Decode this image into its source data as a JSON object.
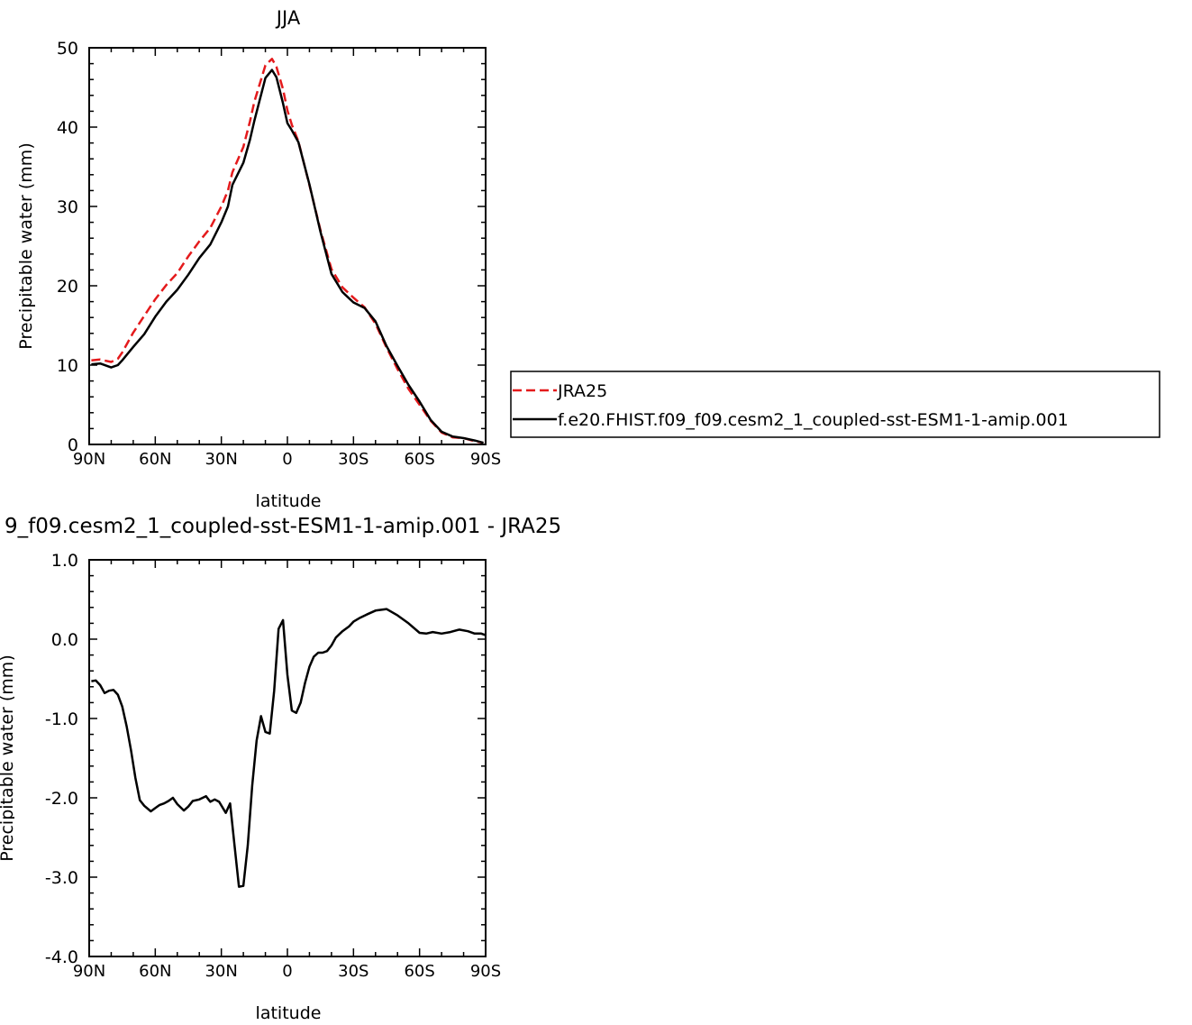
{
  "chart_data": [
    {
      "type": "line",
      "title": "JJA",
      "xlabel": "latitude",
      "ylabel": "Precipitable water (mm)",
      "xlim": [
        90,
        -90
      ],
      "ylim": [
        0,
        50
      ],
      "xticks": [
        90,
        60,
        30,
        0,
        -30,
        -60,
        -90
      ],
      "xtick_labels": [
        "90N",
        "60N",
        "30N",
        "0",
        "30S",
        "60S",
        "90S"
      ],
      "yticks": [
        0,
        10,
        20,
        30,
        40,
        50
      ],
      "ytick_labels": [
        "0",
        "10",
        "20",
        "30",
        "40",
        "50"
      ],
      "legend_position": "right",
      "series": [
        {
          "name": "JRA25",
          "color": "#e41a1c",
          "dash": "dashed",
          "x": [
            89,
            85,
            80,
            77,
            75,
            70,
            65,
            60,
            55,
            50,
            45,
            40,
            35,
            30,
            27,
            25,
            20,
            17,
            15,
            10,
            7,
            5,
            2,
            0,
            -2,
            -5,
            -10,
            -15,
            -20,
            -25,
            -30,
            -35,
            -40,
            -45,
            -50,
            -55,
            -60,
            -65,
            -70,
            -75,
            -80,
            -85,
            -89
          ],
          "y": [
            10.6,
            10.7,
            10.4,
            10.8,
            11.6,
            14.1,
            16.2,
            18.3,
            20.1,
            21.6,
            23.7,
            25.6,
            27.3,
            30.0,
            32.0,
            34.3,
            37.5,
            40.7,
            43.2,
            47.8,
            48.6,
            47.6,
            44.8,
            42.1,
            40.3,
            38.2,
            32.7,
            27.0,
            22.1,
            19.8,
            18.5,
            17.3,
            15.2,
            12.2,
            9.5,
            7.0,
            5.0,
            3.0,
            1.5,
            0.9,
            0.8,
            0.4,
            0.2
          ]
        },
        {
          "name": "f.e20.FHIST.f09_f09.cesm2_1_coupled-sst-ESM1-1-amip.001",
          "color": "#000000",
          "dash": "solid",
          "x": [
            89,
            85,
            80,
            77,
            75,
            70,
            65,
            60,
            55,
            50,
            45,
            40,
            35,
            30,
            27,
            25,
            20,
            17,
            15,
            10,
            7,
            5,
            2,
            0,
            -2,
            -5,
            -10,
            -15,
            -20,
            -25,
            -30,
            -35,
            -40,
            -45,
            -50,
            -55,
            -60,
            -65,
            -70,
            -75,
            -80,
            -85,
            -89
          ],
          "y": [
            10.1,
            10.2,
            9.7,
            10.0,
            10.6,
            12.3,
            13.9,
            16.1,
            18.0,
            19.5,
            21.4,
            23.5,
            25.2,
            28.0,
            30.0,
            32.7,
            35.5,
            38.4,
            40.8,
            46.2,
            47.2,
            46.3,
            43.0,
            40.5,
            39.6,
            38.1,
            32.8,
            26.8,
            21.5,
            19.2,
            17.9,
            17.2,
            15.5,
            12.4,
            9.9,
            7.5,
            5.4,
            3.1,
            1.6,
            1.0,
            0.8,
            0.5,
            0.2
          ]
        }
      ]
    },
    {
      "type": "line",
      "title": "9_f09.cesm2_1_coupled-sst-ESM1-1-amip.001 - JRA25",
      "xlabel": "latitude",
      "ylabel": "Precipitable water (mm)",
      "xlim": [
        90,
        -90
      ],
      "ylim": [
        -4,
        1
      ],
      "xticks": [
        90,
        60,
        30,
        0,
        -30,
        -60,
        -90
      ],
      "xtick_labels": [
        "90N",
        "60N",
        "30N",
        "0",
        "30S",
        "60S",
        "90S"
      ],
      "yticks": [
        1,
        0,
        -1,
        -2,
        -3,
        -4
      ],
      "ytick_labels": [
        "1.0",
        "0.0",
        "-1.0",
        "-2.0",
        "-3.0",
        "-4.0"
      ],
      "series": [
        {
          "color": "#000000",
          "dash": "solid",
          "x": [
            89,
            87,
            85,
            83,
            81,
            79,
            77,
            75,
            73,
            71,
            69,
            67,
            65,
            62,
            60,
            58,
            56,
            54,
            52,
            50,
            47,
            45,
            43,
            40,
            37,
            35,
            33,
            31,
            28,
            26,
            24,
            22,
            20,
            18,
            16,
            14,
            12,
            10,
            8,
            6,
            4,
            2,
            0,
            -2,
            -4,
            -6,
            -8,
            -10,
            -12,
            -14,
            -16,
            -18,
            -20,
            -22,
            -25,
            -28,
            -30,
            -33,
            -36,
            -40,
            -45,
            -50,
            -55,
            -60,
            -63,
            -66,
            -70,
            -74,
            -78,
            -82,
            -85,
            -88,
            -90
          ],
          "y": [
            -0.53,
            -0.52,
            -0.58,
            -0.68,
            -0.65,
            -0.64,
            -0.7,
            -0.85,
            -1.1,
            -1.4,
            -1.75,
            -2.03,
            -2.1,
            -2.17,
            -2.13,
            -2.09,
            -2.07,
            -2.04,
            -2.0,
            -2.08,
            -2.16,
            -2.11,
            -2.04,
            -2.02,
            -1.98,
            -2.05,
            -2.02,
            -2.05,
            -2.19,
            -2.07,
            -2.6,
            -3.12,
            -3.11,
            -2.6,
            -1.85,
            -1.28,
            -0.97,
            -1.17,
            -1.19,
            -0.65,
            0.13,
            0.24,
            -0.45,
            -0.9,
            -0.93,
            -0.8,
            -0.55,
            -0.35,
            -0.22,
            -0.17,
            -0.17,
            -0.15,
            -0.08,
            0.02,
            0.1,
            0.16,
            0.22,
            0.27,
            0.31,
            0.36,
            0.38,
            0.3,
            0.2,
            0.08,
            0.07,
            0.09,
            0.07,
            0.09,
            0.12,
            0.1,
            0.07,
            0.07,
            0.05
          ]
        }
      ]
    }
  ]
}
